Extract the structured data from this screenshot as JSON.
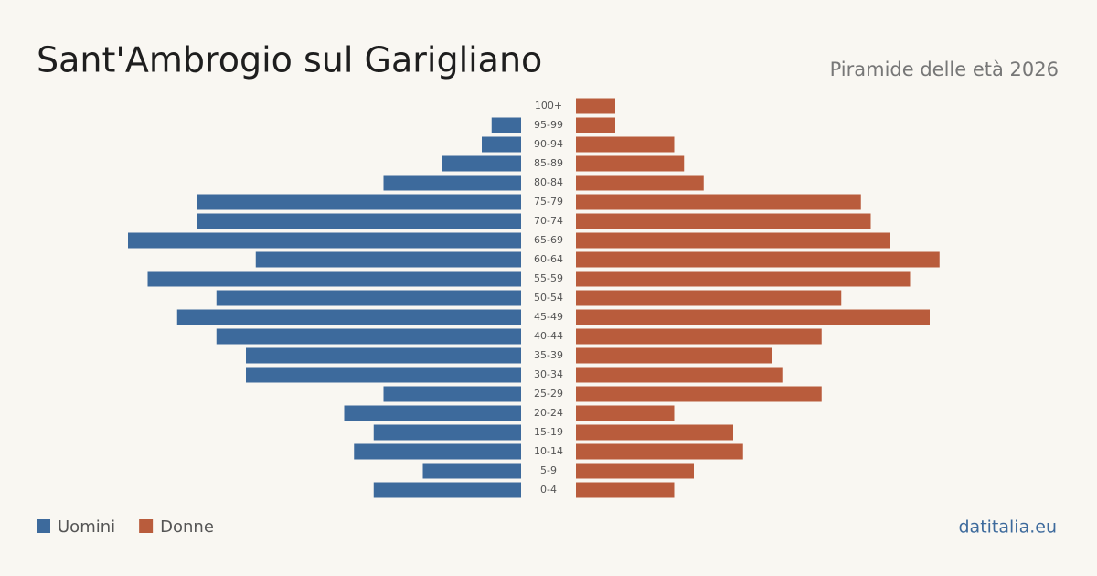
{
  "chart_data": {
    "type": "pyramid",
    "title": "Sant'Ambrogio sul Garigliano",
    "subtitle": "Piramide delle età 2026",
    "source": "datitalia.eu",
    "categories": [
      "100+",
      "95-99",
      "90-94",
      "85-89",
      "80-84",
      "75-79",
      "70-74",
      "65-69",
      "60-64",
      "55-59",
      "50-54",
      "45-49",
      "40-44",
      "35-39",
      "30-34",
      "25-29",
      "20-24",
      "15-19",
      "10-14",
      "5-9",
      "0-4"
    ],
    "series": [
      {
        "name": "Uomini",
        "color": "#3d6a9c",
        "values": [
          0,
          3,
          4,
          8,
          14,
          33,
          33,
          40,
          27,
          38,
          31,
          35,
          31,
          28,
          28,
          14,
          18,
          15,
          17,
          10,
          15
        ]
      },
      {
        "name": "Donne",
        "color": "#b95c3c",
        "values": [
          4,
          4,
          10,
          11,
          13,
          29,
          30,
          32,
          37,
          34,
          27,
          36,
          25,
          20,
          21,
          25,
          10,
          16,
          17,
          12,
          10
        ]
      }
    ]
  }
}
